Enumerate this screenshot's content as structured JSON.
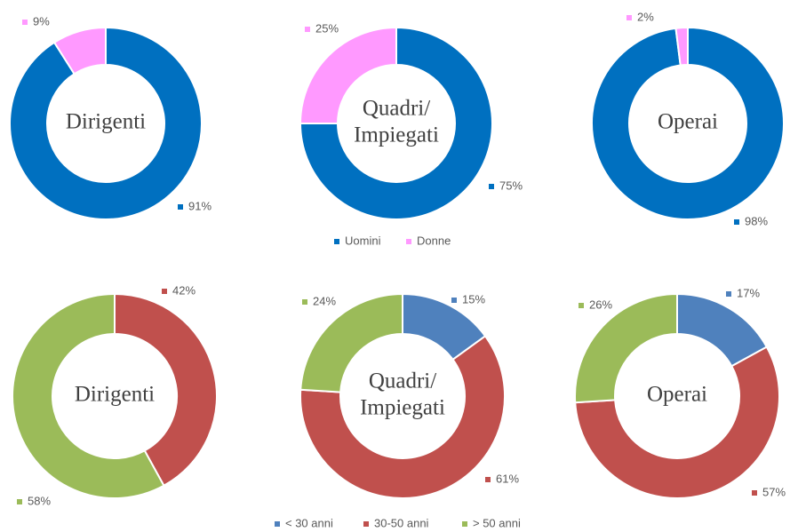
{
  "chart_data": [
    {
      "type": "donut",
      "center_label": [
        "Dirigenti"
      ],
      "values": [
        91,
        9
      ],
      "value_labels": [
        "91%",
        "9%"
      ],
      "colors": [
        "#0070c0",
        "#ff99ff"
      ]
    },
    {
      "type": "donut",
      "center_label": [
        "Quadri/",
        "Impiegati"
      ],
      "values": [
        75,
        25
      ],
      "value_labels": [
        "75%",
        "25%"
      ],
      "colors": [
        "#0070c0",
        "#ff99ff"
      ],
      "categories": [
        "Uomini",
        "Donne"
      ]
    },
    {
      "type": "donut",
      "center_label": [
        "Operai"
      ],
      "values": [
        98,
        2
      ],
      "value_labels": [
        "98%",
        "2%"
      ],
      "colors": [
        "#0070c0",
        "#ff99ff"
      ]
    },
    {
      "type": "donut",
      "center_label": [
        "Dirigenti"
      ],
      "values": [
        42,
        58
      ],
      "value_labels": [
        "42%",
        "58%"
      ],
      "colors": [
        "#c0504d",
        "#9bbb59"
      ]
    },
    {
      "type": "donut",
      "center_label": [
        "Quadri/",
        "Impiegati"
      ],
      "values": [
        15,
        61,
        24
      ],
      "value_labels": [
        "15%",
        "61%",
        "24%"
      ],
      "colors": [
        "#4f81bd",
        "#c0504d",
        "#9bbb59"
      ],
      "categories": [
        "< 30 anni",
        "30-50 anni",
        "> 50 anni"
      ]
    },
    {
      "type": "donut",
      "center_label": [
        "Operai"
      ],
      "values": [
        17,
        57,
        26
      ],
      "value_labels": [
        "17%",
        "57%",
        "26%"
      ],
      "colors": [
        "#4f81bd",
        "#c0504d",
        "#9bbb59"
      ]
    }
  ]
}
